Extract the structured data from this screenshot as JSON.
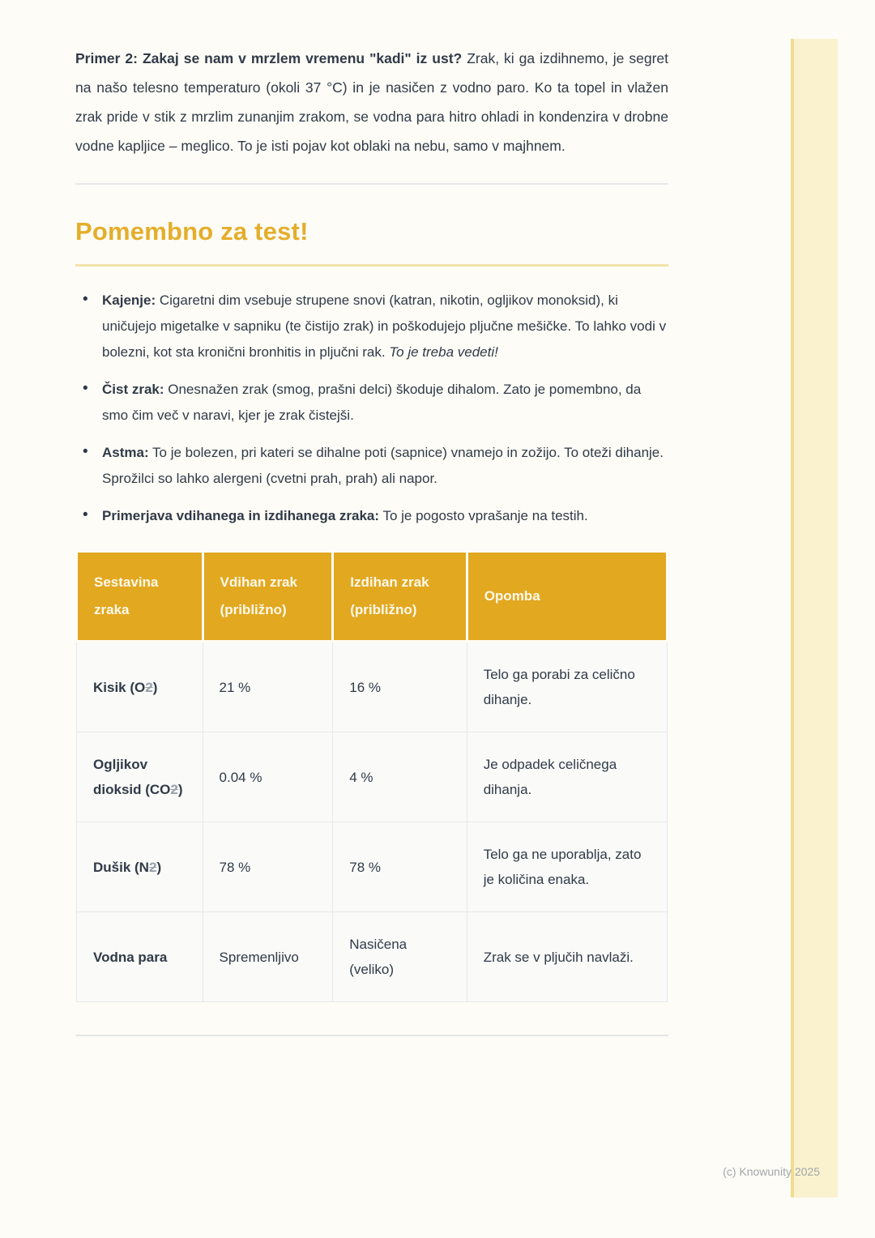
{
  "doc": {
    "bullet_char": "•",
    "intro": {
      "lead": "Primer 2: Zakaj se nam v mrzlem vremenu \"kadi\" iz ust?",
      "body": " Zrak, ki ga izdihnemo, je segret na našo telesno temperaturo (okoli 37 °C) in je nasičen z vodno paro. Ko ta topel in vlažen zrak pride v stik z mrzlim zunanjim zrakom, se vodna para hitro ohladi in kondenzira v drobne vodne kapljice – meglico. To je isti pojav kot oblaki na nebu, samo v majhnem."
    },
    "heading": "Pomembno za test!",
    "bullets": [
      {
        "lead": "Kajenje:",
        "text": " Cigaretni dim vsebuje strupene snovi (katran, nikotin, ogljikov monoksid), ki uničujejo migetalke v sapniku (te čistijo zrak) in poškodujejo pljučne mešičke. To lahko vodi v bolezni, kot sta kronični bronhitis in pljučni rak. ",
        "italic": "To je treba vedeti!"
      },
      {
        "lead": "Čist zrak:",
        "text": " Onesnažen zrak (smog, prašni delci) škoduje dihalom. Zato je pomembno, da smo čim več v naravi, kjer je zrak čistejši.",
        "italic": ""
      },
      {
        "lead": "Astma:",
        "text": " To je bolezen, pri kateri se dihalne poti (sapnice) vnamejo in zožijo. To oteži dihanje. Sprožilci so lahko alergeni (cvetni prah, prah) ali napor.",
        "italic": ""
      },
      {
        "lead": "Primerjava vdihanega in izdihanega zraka:",
        "text": " To je pogosto vprašanje na testih.",
        "italic": ""
      }
    ],
    "table": {
      "headers": [
        "Sestavina zraka",
        "Vdihan zrak (približno)",
        "Izdihan zrak (približno)",
        "Opomba"
      ],
      "rows": [
        {
          "name": {
            "prefix": "Kisik (O",
            "sub": "2",
            "suffix": ")"
          },
          "inhaled": "21 %",
          "exhaled": "16 %",
          "note": "Telo ga porabi za celično dihanje."
        },
        {
          "name": {
            "prefix": "Ogljikov dioksid (CO",
            "sub": "2",
            "suffix": ")"
          },
          "inhaled": "0.04 %",
          "exhaled": "4 %",
          "note": "Je odpadek celičnega dihanja."
        },
        {
          "name": {
            "prefix": "Dušik (N",
            "sub": "2",
            "suffix": ")"
          },
          "inhaled": "78 %",
          "exhaled": "78 %",
          "note": "Telo ga ne uporablja, zato je količina enaka."
        },
        {
          "name": {
            "prefix": "Vodna para",
            "sub": "",
            "suffix": ""
          },
          "inhaled": "Spremenljivo",
          "exhaled": "Nasičena (veliko)",
          "note": "Zrak se v pljučih navlaži."
        }
      ]
    },
    "footer": "(c) Knowunity 2025",
    "colors": {
      "accent_gold": "#E2A820",
      "heading_gold": "#E4AE2B",
      "pale_gold_bar": "#FAF2CE",
      "underline_gold": "#F3E3AA",
      "text_dark": "#303A48",
      "footer_gray": "#A2A6AB"
    }
  }
}
